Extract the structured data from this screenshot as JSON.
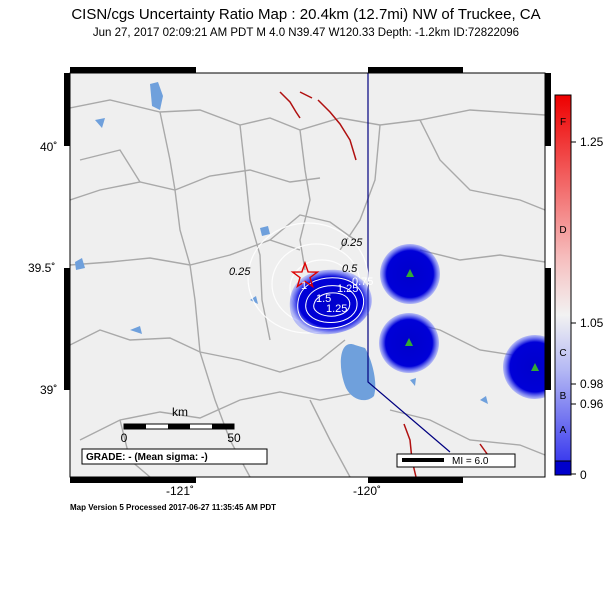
{
  "header": {
    "title": "CISN/cgs Uncertainty Ratio Map : 20.4km (12.7mi) NW of Truckee, CA",
    "subtitle": "Jun 27, 2017 02:09:21 AM PDT    M 4.0    N39.47 W120.33    Depth: -1.2km    ID:72822096"
  },
  "map": {
    "lat_ticks": [
      "40˚",
      "39.5˚",
      "39˚"
    ],
    "lon_ticks": [
      "-121˚",
      "-120˚"
    ],
    "contour_labels_dark": [
      "0.25",
      "0.25",
      "0.5"
    ],
    "contour_labels_light": [
      "0.75",
      "1",
      "1.25",
      "1.5",
      "1.25"
    ],
    "scale_bar": {
      "unit": "km",
      "start": "0",
      "end": "50"
    },
    "grade_text": "GRADE: - (Mean sigma: -)",
    "mi_legend": "MI = 6.0",
    "epicenter_icon": "star-icon",
    "station_icon": "triangle-icon",
    "colors": {
      "ocean": "#f0f0f0",
      "lake": "#6fa0dc",
      "road": "#a9a9a9",
      "fault": "#b01010",
      "boundary": "#000080",
      "station": "#0000cc"
    }
  },
  "colorbar": {
    "right_labels": [
      "1.25",
      "1.05",
      "0.98",
      "0.96",
      "0"
    ],
    "grade_letters": [
      "F",
      "D",
      "C",
      "B",
      "A"
    ]
  },
  "footer": "Map Version 5 Processed 2017-06-27 11:35:45 AM PDT"
}
